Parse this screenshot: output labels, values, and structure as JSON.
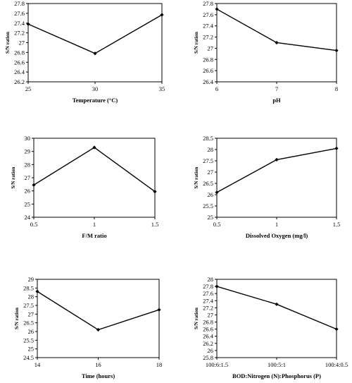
{
  "chart_data": [
    {
      "type": "line",
      "xlabel": "Temperature (°C)",
      "ylabel": "S/N ration",
      "x": [
        25,
        30,
        35
      ],
      "xticks": [
        "25",
        "30",
        "35"
      ],
      "series": [
        {
          "values": [
            27.38,
            26.78,
            27.57
          ]
        }
      ],
      "ylim": [
        26.2,
        27.8
      ],
      "yticks": [
        "26.2",
        "26.4",
        "26.6",
        "26.8",
        "27",
        "27.2",
        "27.4",
        "27.6",
        "27.8"
      ],
      "grid": false
    },
    {
      "type": "line",
      "xlabel": "pH",
      "ylabel": "S/N ration",
      "x": [
        6,
        7,
        8
      ],
      "xticks": [
        "6",
        "7",
        "8"
      ],
      "series": [
        {
          "values": [
            27.7,
            27.1,
            26.96
          ]
        }
      ],
      "ylim": [
        26.4,
        27.8
      ],
      "yticks": [
        "26.4",
        "26.6",
        "26.8",
        "27",
        "27.2",
        "27.4",
        "27.6",
        "27.8"
      ],
      "grid": false
    },
    {
      "type": "line",
      "xlabel": "F/M ratio",
      "ylabel": "S/N ration",
      "x": [
        0.5,
        1,
        1.5
      ],
      "xticks": [
        "0.5",
        "1",
        "1.5"
      ],
      "series": [
        {
          "values": [
            26.45,
            29.3,
            25.95
          ]
        }
      ],
      "ylim": [
        24,
        30
      ],
      "yticks": [
        "24",
        "25",
        "26",
        "27",
        "28",
        "29",
        "30"
      ],
      "grid": false
    },
    {
      "type": "line",
      "xlabel": "Dissolved Oxygen (mg/l)",
      "ylabel": "S/N ration",
      "x": [
        0.5,
        1,
        1.5
      ],
      "xticks": [
        "0.5",
        "1",
        "1.5"
      ],
      "series": [
        {
          "values": [
            26.1,
            27.55,
            28.05
          ]
        }
      ],
      "ylim": [
        25,
        28.5
      ],
      "yticks": [
        "25",
        "25.5",
        "26",
        "26.5",
        "27",
        "27.5",
        "28",
        "28.5"
      ],
      "grid": false
    },
    {
      "type": "line",
      "xlabel": "Time (hours)",
      "ylabel": "S/N ration",
      "x": [
        14,
        16,
        18
      ],
      "xticks": [
        "14",
        "16",
        "18"
      ],
      "series": [
        {
          "values": [
            28.3,
            26.1,
            27.25
          ]
        }
      ],
      "ylim": [
        24.5,
        29
      ],
      "yticks": [
        "24.5",
        "25",
        "25.5",
        "26",
        "26.5",
        "27",
        "27.5",
        "28",
        "28.5",
        "29"
      ],
      "grid": false
    },
    {
      "type": "line",
      "xlabel": "BOD:Nitrogen (N):Phosphorus (P)",
      "ylabel": "S/N ration",
      "categories": [
        "100:6:1.5",
        "100:5:1",
        "100:4:0.5"
      ],
      "xticks": [
        "100:6:1.5",
        "100:5:1",
        "100:4:0.5"
      ],
      "series": [
        {
          "values": [
            27.8,
            27.3,
            26.6
          ]
        }
      ],
      "ylim": [
        25.8,
        28
      ],
      "yticks": [
        "25.8",
        "26",
        "26.2",
        "26.4",
        "26.6",
        "26.8",
        "27",
        "27.2",
        "27.4",
        "27.6",
        "27.8",
        "28"
      ],
      "grid": false
    }
  ]
}
